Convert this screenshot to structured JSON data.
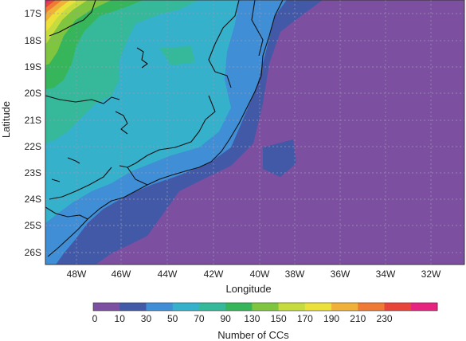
{
  "map": {
    "ylabel": "Latitude",
    "xlabel": "Longitude",
    "y_ticks": [
      "17S",
      "18S",
      "19S",
      "20S",
      "21S",
      "22S",
      "23S",
      "24S",
      "25S",
      "26S"
    ],
    "x_ticks": [
      "48W",
      "46W",
      "44W",
      "42W",
      "40W",
      "38W",
      "36W",
      "34W",
      "32W"
    ],
    "grid": "dotted"
  },
  "colorbar": {
    "title": "Number of CCs",
    "levels": [
      "0",
      "10",
      "30",
      "50",
      "70",
      "90",
      "130",
      "150",
      "170",
      "190",
      "210",
      "230"
    ],
    "colors": [
      "#7d4fa0",
      "#4259a8",
      "#3f8ed6",
      "#36b1cc",
      "#35b99a",
      "#36b55a",
      "#7fc540",
      "#c6dc3e",
      "#ece03a",
      "#efb13a",
      "#ee7a36",
      "#e8453a",
      "#e6247f"
    ]
  }
}
